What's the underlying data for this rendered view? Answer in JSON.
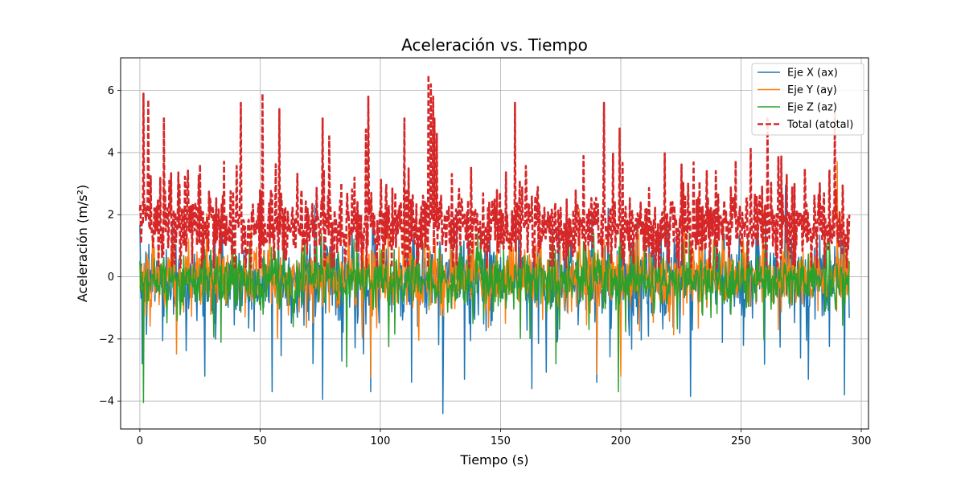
{
  "chart_data": {
    "type": "line",
    "title": "Aceleración vs. Tiempo",
    "xlabel": "Tiempo (s)",
    "ylabel": "Aceleración (m/s²)",
    "xlim": [
      -8,
      303
    ],
    "ylim": [
      -4.9,
      7.05
    ],
    "xticks": [
      0,
      50,
      100,
      150,
      200,
      250,
      300
    ],
    "yticks": [
      -4,
      -2,
      0,
      2,
      4,
      6
    ],
    "grid": true,
    "legend_position": "top-right",
    "sample_interval_s": 0.25,
    "x_range": [
      0,
      295
    ],
    "series": [
      {
        "name": "Eje X (ax)",
        "color": "#1f77b4",
        "dash": "solid",
        "mean": 0.0,
        "spread": 1.1,
        "min": -4.4,
        "max": 4.2,
        "spikes": [
          [
            1.0,
            -2.8
          ],
          [
            27,
            -3.2
          ],
          [
            55,
            -3.7
          ],
          [
            76,
            -3.95
          ],
          [
            96,
            -3.7
          ],
          [
            113,
            -3.4
          ],
          [
            126,
            -4.4
          ],
          [
            135,
            -3.3
          ],
          [
            163,
            -3.6
          ],
          [
            190,
            -3.4
          ],
          [
            229,
            -3.85
          ],
          [
            278,
            -3.3
          ],
          [
            293,
            -3.8
          ]
        ]
      },
      {
        "name": "Eje Y (ay)",
        "color": "#ff7f0e",
        "dash": "solid",
        "mean": 0.0,
        "spread": 0.95,
        "min": -3.2,
        "max": 3.7,
        "spikes": [
          [
            96,
            -3.25
          ],
          [
            190,
            -3.15
          ],
          [
            200,
            -3.2
          ],
          [
            110,
            3.3
          ],
          [
            290,
            3.7
          ]
        ]
      },
      {
        "name": "Eje Z (az)",
        "color": "#2ca02c",
        "dash": "solid",
        "mean": -0.1,
        "spread": 0.8,
        "min": -4.05,
        "max": 1.4,
        "spikes": [
          [
            1.5,
            -4.05
          ],
          [
            199,
            -3.7
          ],
          [
            86,
            -2.9
          ],
          [
            173,
            -2.8
          ]
        ]
      },
      {
        "name": "Total (atotal)",
        "color": "#d62728",
        "dash": "dashed",
        "mean": 1.5,
        "spread": 1.0,
        "min": 0.3,
        "max": 6.5,
        "spikes": [
          [
            1.5,
            5.9
          ],
          [
            3.5,
            5.7
          ],
          [
            10,
            5.1
          ],
          [
            42,
            5.6
          ],
          [
            51,
            5.9
          ],
          [
            58,
            5.4
          ],
          [
            76,
            5.1
          ],
          [
            95,
            5.8
          ],
          [
            110,
            5.1
          ],
          [
            120,
            6.5
          ],
          [
            121,
            6.2
          ],
          [
            122,
            5.8
          ],
          [
            156,
            5.6
          ],
          [
            193,
            5.6
          ],
          [
            261,
            5.1
          ],
          [
            289,
            5.3
          ]
        ]
      }
    ]
  }
}
